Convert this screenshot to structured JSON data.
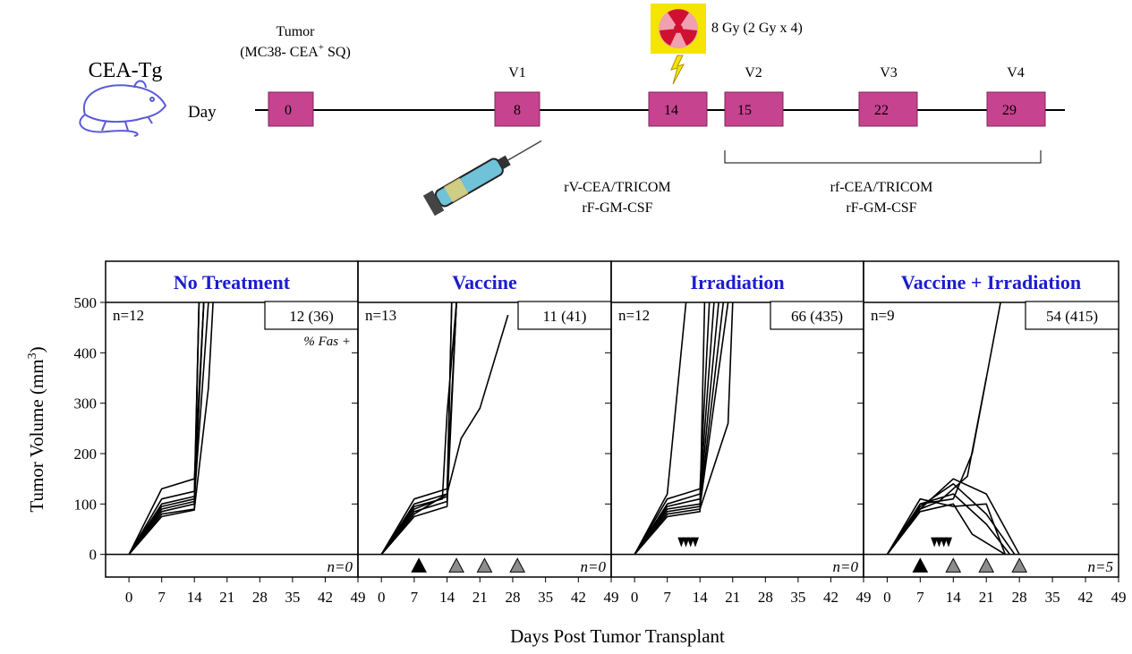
{
  "schematic": {
    "mouse_label": "CEA-Tg",
    "day_label": "Day",
    "tumor_line1": "Tumor",
    "tumor_line2": "(MC38- CEA",
    "tumor_sup": "+",
    "tumor_line2_end": "  SQ)",
    "dose": "8 Gy (2 Gy x 4)",
    "vaccinations": [
      "V1",
      "V2",
      "V3",
      "V4"
    ],
    "days": [
      "0",
      "8",
      "14",
      "15",
      "22",
      "29"
    ],
    "prime_line1": "rV-CEA/TRICOM",
    "prime_line2": "rF-GM-CSF",
    "boost_line1": "rf-CEA/TRICOM",
    "boost_line2": "rF-GM-CSF"
  },
  "figure": {
    "xlabel": "Days Post Tumor Transplant",
    "ylabel": "Tumor Volume (mm",
    "ylabel_sup": "3",
    "ylabel_end": ")"
  },
  "chart_data": [
    {
      "type": "line",
      "title": "No Treatment",
      "n_top": "n=12",
      "box": "12 (36)",
      "box_note": "% Fas +",
      "n_bottom": "n=0",
      "line_color": "#000000",
      "xlim": [
        -5,
        49
      ],
      "ylim": [
        -45,
        500
      ],
      "xticks": [
        0,
        7,
        14,
        21,
        28,
        35,
        42,
        49
      ],
      "yticks": [
        0,
        100,
        200,
        300,
        400,
        500
      ],
      "series": [
        {
          "x": [
            0,
            7,
            14,
            16
          ],
          "values": [
            0,
            130,
            150,
            500
          ]
        },
        {
          "x": [
            0,
            7,
            14,
            15
          ],
          "values": [
            0,
            110,
            125,
            500
          ]
        },
        {
          "x": [
            0,
            7,
            14,
            16
          ],
          "values": [
            0,
            100,
            115,
            500
          ]
        },
        {
          "x": [
            0,
            7,
            14,
            17
          ],
          "values": [
            0,
            95,
            110,
            500
          ]
        },
        {
          "x": [
            0,
            7,
            14,
            15
          ],
          "values": [
            0,
            90,
            105,
            500
          ]
        },
        {
          "x": [
            0,
            7,
            14,
            16
          ],
          "values": [
            0,
            85,
            100,
            500
          ]
        },
        {
          "x": [
            0,
            7,
            14,
            17,
            18
          ],
          "values": [
            0,
            80,
            90,
            330,
            500
          ]
        },
        {
          "x": [
            0,
            7,
            14,
            15
          ],
          "values": [
            0,
            75,
            88,
            500
          ]
        }
      ]
    },
    {
      "type": "line",
      "title": "Vaccine",
      "n_top": "n=13",
      "box": "11 (41)",
      "n_bottom": "n=0",
      "line_color": "#000000",
      "xlim": [
        -5,
        49
      ],
      "ylim": [
        -45,
        500
      ],
      "xticks": [
        0,
        7,
        14,
        21,
        28,
        35,
        42,
        49
      ],
      "yticks": [
        0,
        100,
        200,
        300,
        400,
        500
      ],
      "vaccine_markers": {
        "x": [
          8,
          16,
          22,
          29
        ],
        "colors": [
          "#000000",
          "#8c8c8c",
          "#8c8c8c",
          "#8c8c8c"
        ]
      },
      "series": [
        {
          "x": [
            0,
            7,
            14,
            16
          ],
          "values": [
            0,
            110,
            130,
            500
          ]
        },
        {
          "x": [
            0,
            7,
            14,
            15
          ],
          "values": [
            0,
            100,
            120,
            500
          ]
        },
        {
          "x": [
            0,
            7,
            13,
            14,
            16
          ],
          "values": [
            0,
            95,
            110,
            280,
            500
          ]
        },
        {
          "x": [
            0,
            7,
            14,
            16
          ],
          "values": [
            0,
            90,
            115,
            500
          ]
        },
        {
          "x": [
            0,
            7,
            14,
            15
          ],
          "values": [
            0,
            85,
            105,
            500
          ]
        },
        {
          "x": [
            0,
            7,
            14,
            17,
            21,
            27
          ],
          "values": [
            0,
            80,
            120,
            230,
            290,
            475
          ]
        },
        {
          "x": [
            0,
            7,
            14,
            16
          ],
          "values": [
            0,
            75,
            95,
            500
          ]
        }
      ]
    },
    {
      "type": "line",
      "title": "Irradiation",
      "n_top": "n=12",
      "box": "66 (435)",
      "n_bottom": "n=0",
      "line_color": "#000000",
      "xlim": [
        -5,
        49
      ],
      "ylim": [
        -45,
        500
      ],
      "xticks": [
        0,
        7,
        14,
        21,
        28,
        35,
        42,
        49
      ],
      "yticks": [
        0,
        100,
        200,
        300,
        400,
        500
      ],
      "irradiation_markers": {
        "x": [
          10,
          11,
          12,
          13
        ],
        "y": 25
      },
      "series": [
        {
          "x": [
            0,
            7,
            11
          ],
          "values": [
            0,
            120,
            500
          ]
        },
        {
          "x": [
            0,
            7,
            14,
            16
          ],
          "values": [
            0,
            110,
            130,
            500
          ]
        },
        {
          "x": [
            0,
            7,
            14,
            17
          ],
          "values": [
            0,
            100,
            120,
            500
          ]
        },
        {
          "x": [
            0,
            7,
            14,
            18
          ],
          "values": [
            0,
            95,
            110,
            500
          ]
        },
        {
          "x": [
            0,
            7,
            14,
            19
          ],
          "values": [
            0,
            90,
            100,
            500
          ]
        },
        {
          "x": [
            0,
            7,
            14,
            20
          ],
          "values": [
            0,
            85,
            95,
            500
          ]
        },
        {
          "x": [
            0,
            7,
            14,
            20,
            21
          ],
          "values": [
            0,
            80,
            90,
            260,
            500
          ]
        },
        {
          "x": [
            0,
            7,
            14,
            15
          ],
          "values": [
            0,
            75,
            85,
            500
          ]
        }
      ]
    },
    {
      "type": "line",
      "title": "Vaccine + Irradiation",
      "n_top": "n=9",
      "box": "54 (415)",
      "n_bottom": "n=5",
      "line_color": "#000000",
      "xlim": [
        -5,
        49
      ],
      "ylim": [
        -45,
        500
      ],
      "xticks": [
        0,
        7,
        14,
        21,
        28,
        35,
        42,
        49
      ],
      "yticks": [
        0,
        100,
        200,
        300,
        400,
        500
      ],
      "vaccine_markers": {
        "x": [
          7,
          14,
          21,
          28
        ],
        "colors": [
          "#000000",
          "#8c8c8c",
          "#8c8c8c",
          "#8c8c8c"
        ]
      },
      "irradiation_markers": {
        "x": [
          10,
          11,
          12,
          13
        ],
        "y": 25
      },
      "series": [
        {
          "x": [
            0,
            7,
            14,
            18,
            24
          ],
          "values": [
            0,
            100,
            110,
            200,
            500
          ]
        },
        {
          "x": [
            0,
            7,
            14,
            21,
            28
          ],
          "values": [
            0,
            90,
            150,
            120,
            0
          ]
        },
        {
          "x": [
            0,
            7,
            14,
            21,
            27
          ],
          "values": [
            0,
            95,
            140,
            80,
            0
          ]
        },
        {
          "x": [
            0,
            7,
            14,
            21,
            26
          ],
          "values": [
            0,
            100,
            120,
            60,
            0
          ]
        },
        {
          "x": [
            0,
            7,
            14,
            18,
            25
          ],
          "values": [
            0,
            85,
            100,
            40,
            0
          ]
        },
        {
          "x": [
            0,
            7,
            11,
            17,
            21
          ],
          "values": [
            0,
            90,
            105,
            155,
            350
          ]
        },
        {
          "x": [
            0,
            7,
            14,
            21,
            25
          ],
          "values": [
            0,
            110,
            95,
            100,
            0
          ]
        }
      ]
    }
  ]
}
